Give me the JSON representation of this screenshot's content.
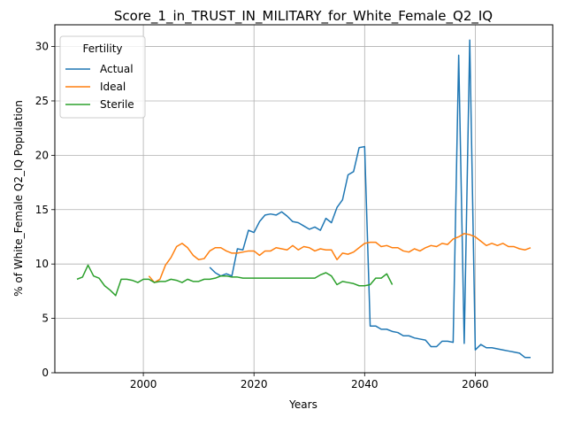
{
  "chart_data": {
    "type": "line",
    "title": "Score_1_in_TRUST_IN_MILITARY_for_White_Female_Q2_IQ",
    "xlabel": "Years",
    "ylabel": "% of White_Female Q2_IQ Population",
    "xlim": [
      1984,
      2074
    ],
    "ylim": [
      0,
      32
    ],
    "xticks": [
      2000,
      2020,
      2040,
      2060
    ],
    "yticks": [
      0,
      5,
      10,
      15,
      20,
      25,
      30
    ],
    "grid": true,
    "legend": {
      "title": "Fertility",
      "placement": "top-left"
    },
    "series": [
      {
        "name": "Actual",
        "color": "#1f77b4",
        "x": [
          2012,
          2013,
          2014,
          2015,
          2016,
          2017,
          2018,
          2019,
          2020,
          2021,
          2022,
          2023,
          2024,
          2025,
          2026,
          2027,
          2028,
          2029,
          2030,
          2031,
          2032,
          2033,
          2034,
          2035,
          2036,
          2037,
          2038,
          2039,
          2040,
          2041,
          2042,
          2043,
          2044,
          2045,
          2046,
          2047,
          2048,
          2049,
          2050,
          2051,
          2052,
          2053,
          2054,
          2055,
          2056,
          2057,
          2058,
          2059,
          2060,
          2061,
          2062,
          2063,
          2064,
          2065,
          2066,
          2067,
          2068,
          2069,
          2070
        ],
        "values": [
          9.7,
          9.2,
          8.9,
          9.1,
          8.9,
          11.4,
          11.3,
          13.1,
          12.9,
          13.9,
          14.5,
          14.6,
          14.5,
          14.8,
          14.4,
          13.9,
          13.8,
          13.5,
          13.2,
          13.4,
          13.1,
          14.2,
          13.8,
          15.2,
          15.9,
          18.2,
          18.5,
          20.7,
          20.8,
          4.3,
          4.3,
          4.0,
          4.0,
          3.8,
          3.7,
          3.4,
          3.4,
          3.2,
          3.1,
          3.0,
          2.4,
          2.4,
          2.9,
          2.9,
          2.8,
          29.2,
          2.7,
          30.6,
          2.1,
          2.6,
          2.3,
          2.3,
          2.2,
          2.1,
          2.0,
          1.9,
          1.8,
          1.4,
          1.4
        ]
      },
      {
        "name": "Ideal",
        "color": "#ff7f0e",
        "x": [
          2001,
          2002,
          2003,
          2004,
          2005,
          2006,
          2007,
          2008,
          2009,
          2010,
          2011,
          2012,
          2013,
          2014,
          2015,
          2016,
          2017,
          2018,
          2019,
          2020,
          2021,
          2022,
          2023,
          2024,
          2025,
          2026,
          2027,
          2028,
          2029,
          2030,
          2031,
          2032,
          2033,
          2034,
          2035,
          2036,
          2037,
          2038,
          2039,
          2040,
          2041,
          2042,
          2043,
          2044,
          2045,
          2046,
          2047,
          2048,
          2049,
          2050,
          2051,
          2052,
          2053,
          2054,
          2055,
          2056,
          2057,
          2058,
          2059,
          2060,
          2061,
          2062,
          2063,
          2064,
          2065,
          2066,
          2067,
          2068,
          2069,
          2070
        ],
        "values": [
          8.9,
          8.3,
          8.6,
          9.9,
          10.6,
          11.6,
          11.9,
          11.5,
          10.8,
          10.4,
          10.5,
          11.2,
          11.5,
          11.5,
          11.2,
          11.0,
          11.0,
          11.1,
          11.2,
          11.2,
          10.8,
          11.2,
          11.2,
          11.5,
          11.4,
          11.3,
          11.7,
          11.3,
          11.6,
          11.5,
          11.2,
          11.4,
          11.3,
          11.3,
          10.4,
          11.0,
          10.9,
          11.1,
          11.5,
          11.9,
          12.0,
          12.0,
          11.6,
          11.7,
          11.5,
          11.5,
          11.2,
          11.1,
          11.4,
          11.2,
          11.5,
          11.7,
          11.6,
          11.9,
          11.8,
          12.3,
          12.5,
          12.8,
          12.7,
          12.5,
          12.1,
          11.7,
          11.9,
          11.7,
          11.9,
          11.6,
          11.6,
          11.4,
          11.3,
          11.5
        ]
      },
      {
        "name": "Sterile",
        "color": "#2ca02c",
        "x": [
          1988,
          1989,
          1990,
          1991,
          1992,
          1993,
          1994,
          1995,
          1996,
          1997,
          1998,
          1999,
          2000,
          2001,
          2002,
          2003,
          2004,
          2005,
          2006,
          2007,
          2008,
          2009,
          2010,
          2011,
          2012,
          2013,
          2014,
          2015,
          2016,
          2017,
          2018,
          2019,
          2020,
          2021,
          2022,
          2023,
          2024,
          2025,
          2026,
          2027,
          2028,
          2029,
          2030,
          2031,
          2032,
          2033,
          2034,
          2035,
          2036,
          2037,
          2038,
          2039,
          2040,
          2041,
          2042,
          2043,
          2044,
          2045
        ],
        "values": [
          8.6,
          8.8,
          9.9,
          8.9,
          8.7,
          8.0,
          7.6,
          7.1,
          8.6,
          8.6,
          8.5,
          8.3,
          8.6,
          8.6,
          8.3,
          8.4,
          8.4,
          8.6,
          8.5,
          8.3,
          8.6,
          8.4,
          8.4,
          8.6,
          8.6,
          8.7,
          8.9,
          8.9,
          8.8,
          8.8,
          8.7,
          8.7,
          8.7,
          8.7,
          8.7,
          8.7,
          8.7,
          8.7,
          8.7,
          8.7,
          8.7,
          8.7,
          8.7,
          8.7,
          9.0,
          9.2,
          8.9,
          8.1,
          8.4,
          8.3,
          8.2,
          8.0,
          8.0,
          8.1,
          8.7,
          8.7,
          9.1,
          8.1
        ]
      }
    ]
  }
}
